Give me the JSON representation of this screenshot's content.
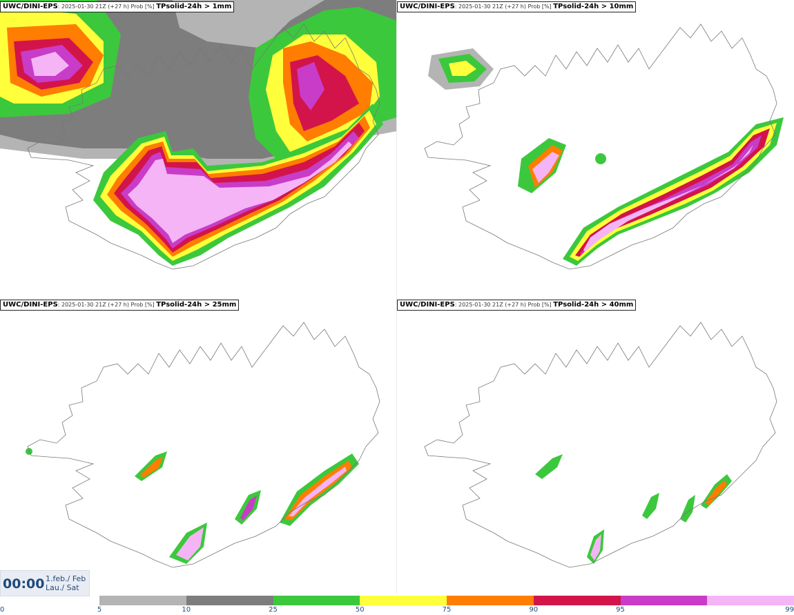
{
  "panels": [
    {
      "model": "UWC/DINI-EPS",
      "meta": ": 2025-01-30 21Z (+27 h) Prob [%] ",
      "param": "TPsolid-24h > 1mm"
    },
    {
      "model": "UWC/DINI-EPS",
      "meta": ": 2025-01-30 21Z (+27 h) Prob [%] ",
      "param": "TPsolid-24h > 10mm"
    },
    {
      "model": "UWC/DINI-EPS",
      "meta": ": 2025-01-30 21Z (+27 h) Prob [%] ",
      "param": "TPsolid-24h > 25mm"
    },
    {
      "model": "UWC/DINI-EPS",
      "meta": ": 2025-01-30 21Z (+27 h) Prob [%] ",
      "param": "TPsolid-24h > 40mm"
    }
  ],
  "clock": {
    "time": "00:00",
    "date_line1": "1.feb./ Feb",
    "date_line2": "Lau./ Sat"
  },
  "legend": {
    "ticks": [
      "0",
      "5",
      "10",
      "25",
      "50",
      "75",
      "90",
      "95",
      "99"
    ],
    "colors": [
      "#b4b4b4",
      "#7d7d7d",
      "#3cc83c",
      "#ffff3c",
      "#ff7d00",
      "#d2144b",
      "#c83cc8",
      "#f5b4f5"
    ]
  }
}
